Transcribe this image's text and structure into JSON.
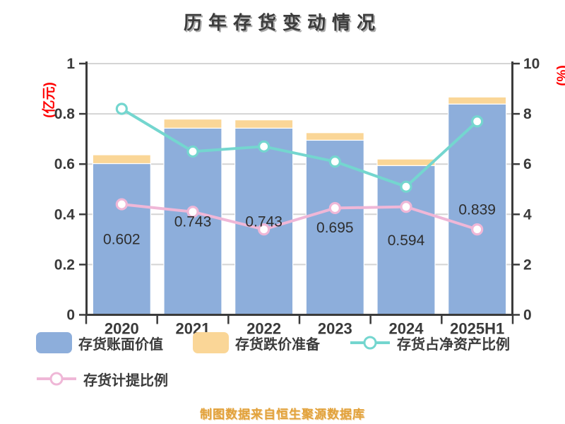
{
  "title": "历年存货变动情况",
  "source_note": "制图数据来自恒生聚源数据库",
  "colors": {
    "background": "#ffffff",
    "title_text": "#3c3c3c",
    "axis_line": "#3b3b3b",
    "tick_text": "#3a3a3a",
    "gridline": "#d4d4d4",
    "axis_unit_label": "#ff0000",
    "bar_book_value": "#8daedb",
    "bar_reserve": "#fad697",
    "line_net_asset_ratio": "#74d6cf",
    "line_provision_ratio": "#efb7d7",
    "marker_fill": "#ffffff",
    "bar_value_text": "#2e2e2e",
    "source_note_text": "#e2a23c"
  },
  "chart_data": {
    "type": "bar",
    "title": "历年存货变动情况",
    "categories": [
      "2020",
      "2021",
      "2022",
      "2023",
      "2024",
      "2025H1"
    ],
    "left_axis": {
      "label": "(亿元)",
      "min": 0,
      "max": 1,
      "ticks": [
        "0",
        "0.2",
        "0.4",
        "0.6",
        "0.8",
        "1"
      ]
    },
    "right_axis": {
      "label": "(%)",
      "min": 0,
      "max": 10,
      "ticks": [
        "0",
        "2",
        "4",
        "6",
        "8",
        "10"
      ]
    },
    "grid": true,
    "legend_position": "bottom-left",
    "series": [
      {
        "name": "存货账面价值",
        "type": "bar",
        "axis": "left",
        "color": "#8daedb",
        "values": [
          0.602,
          0.743,
          0.743,
          0.695,
          0.594,
          0.839
        ],
        "value_labels": [
          "0.602",
          "0.743",
          "0.743",
          "0.695",
          "0.594",
          "0.839"
        ]
      },
      {
        "name": "存货跌价准备",
        "type": "bar-stacked",
        "axis": "left",
        "color": "#fad697",
        "values": [
          0.035,
          0.036,
          0.033,
          0.03,
          0.026,
          0.028
        ]
      },
      {
        "name": "存货占净资产比例",
        "type": "line",
        "axis": "right",
        "color": "#74d6cf",
        "values": [
          8.2,
          6.5,
          6.7,
          6.1,
          5.1,
          7.7
        ]
      },
      {
        "name": "存货计提比例",
        "type": "line",
        "axis": "right",
        "color": "#efb7d7",
        "values": [
          4.4,
          4.1,
          3.4,
          4.25,
          4.3,
          3.4
        ]
      }
    ]
  }
}
